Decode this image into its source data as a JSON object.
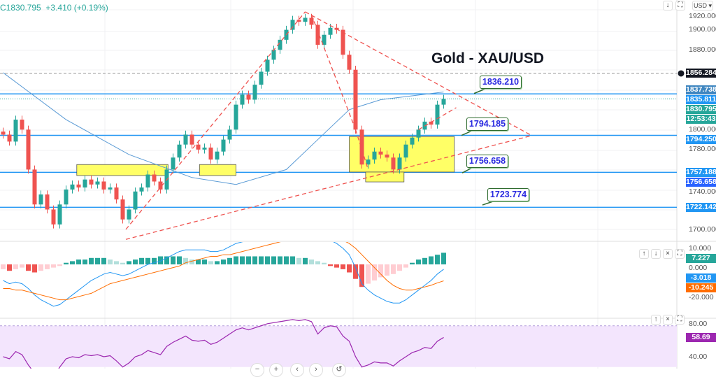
{
  "header": {
    "close": "C1830.795",
    "change": "+3.410 (+0.19%)"
  },
  "toolbar": {
    "currency": "USD",
    "scroll_icon": "arrow-down-icon",
    "autoscale_icon": "autoscale-icon"
  },
  "pane_buttons": {
    "up": "↑",
    "down": "↓",
    "close": "×",
    "max": "⛶"
  },
  "colors": {
    "up": "#26a69a",
    "down": "#ef5350",
    "hline": "#2196f3",
    "trend": "#ef5350",
    "ma": "#5b9bd5",
    "macd": "#2196f3",
    "signal": "#ff6d00",
    "rsi": "#9c27b0",
    "rsi_band": "#f3e5fd",
    "zone": "#ffff66"
  },
  "chart_data": {
    "type": "candlestick",
    "title": "Gold - XAU/USD",
    "price_axis": {
      "ticks": [
        "1920.000",
        "1900.000",
        "1880.000",
        "1800.000",
        "1780.000",
        "1740.000",
        "1700.000"
      ],
      "ylim": [
        1690,
        1925
      ]
    },
    "close": [
      1795,
      1788,
      1810,
      1800,
      1760,
      1725,
      1735,
      1720,
      1705,
      1725,
      1740,
      1745,
      1742,
      1750,
      1745,
      1748,
      1740,
      1742,
      1730,
      1710,
      1720,
      1738,
      1742,
      1755,
      1748,
      1740,
      1760,
      1772,
      1785,
      1795,
      1785,
      1780,
      1782,
      1770,
      1778,
      1790,
      1800,
      1825,
      1835,
      1830,
      1845,
      1858,
      1870,
      1880,
      1890,
      1900,
      1910,
      1908,
      1912,
      1905,
      1885,
      1895,
      1902,
      1900,
      1875,
      1860,
      1800,
      1765,
      1770,
      1778,
      1775,
      1772,
      1760,
      1772,
      1785,
      1792,
      1800,
      1808,
      1805,
      1825,
      1830.795
    ],
    "moving_average": [
      [
        0,
        1857
      ],
      [
        10,
        1810
      ],
      [
        20,
        1775
      ],
      [
        30,
        1752
      ],
      [
        37,
        1745
      ],
      [
        45,
        1760
      ],
      [
        50,
        1790
      ],
      [
        55,
        1820
      ],
      [
        60,
        1830
      ],
      [
        70,
        1837.738
      ]
    ],
    "horizontal_lines": [
      1835.811,
      1794.25,
      1757.188,
      1722.142
    ],
    "trend_lines": [
      [
        [
          19.5,
          1700
        ],
        [
          48,
          1918
        ]
      ],
      [
        [
          48,
          1918
        ],
        [
          84,
          1794
        ]
      ],
      [
        [
          49,
          1915
        ],
        [
          56,
          1800
        ]
      ],
      [
        [
          19.5,
          1690
        ],
        [
          84,
          1794
        ]
      ],
      [
        [
          56,
          1800
        ],
        [
          58,
          1760
        ]
      ],
      [
        [
          66,
          1800
        ],
        [
          72,
          1822
        ]
      ]
    ],
    "zones": [
      [
        [
          11.7,
          1765
        ],
        [
          26.2,
          1754
        ]
      ],
      [
        [
          31.2,
          1765
        ],
        [
          37,
          1754
        ]
      ],
      [
        [
          55,
          1793
        ],
        [
          71.7,
          1757.5
        ]
      ],
      [
        [
          57.6,
          1757.5
        ],
        [
          63.7,
          1747.6
        ]
      ]
    ],
    "callouts": [
      {
        "label": "1836.210",
        "price": 1836.21
      },
      {
        "label": "1794.185",
        "price": 1794.185
      },
      {
        "label": "1756.658",
        "price": 1756.658
      },
      {
        "label": "1723.774",
        "price": 1723.774
      }
    ],
    "price_tags": [
      {
        "value": "1856.284",
        "price": 1856.284,
        "color": "#131722"
      },
      {
        "value": "1837.738",
        "price": 1840,
        "color": "#3f86c0"
      },
      {
        "value": "1835.811",
        "price": 1834,
        "color": "#2196f3"
      },
      {
        "value": "1830.795",
        "price": 1828,
        "color": "#26a69a"
      },
      {
        "value": "12:53:43",
        "price": 1820,
        "color": "#26a69a"
      },
      {
        "value": "1794.250",
        "price": 1794.25,
        "color": "#2196f3"
      },
      {
        "value": "1757.188",
        "price": 1757.188,
        "color": "#2196f3"
      },
      {
        "value": "1756.658",
        "price": 1749,
        "color": "#2962ff"
      },
      {
        "value": "1722.142",
        "price": 1722.142,
        "color": "#2196f3"
      }
    ],
    "macd": {
      "ticks": [
        "10.000",
        "0.000",
        "-20.000"
      ],
      "histogram": [
        -3,
        -4,
        -3,
        -2,
        -4,
        -5,
        -4,
        -3,
        -2,
        -1,
        1,
        2,
        3,
        3,
        4,
        4,
        4,
        3,
        2,
        1,
        2,
        3,
        4,
        4,
        4,
        5,
        5,
        5,
        5,
        4,
        3,
        3,
        3,
        2,
        2,
        3,
        4,
        5,
        5,
        5,
        5,
        5,
        5,
        5,
        5,
        5,
        5,
        4,
        4,
        3,
        2,
        1,
        -1,
        -2,
        -3,
        -5,
        -9,
        -14,
        -12,
        -10,
        -8,
        -7,
        -6,
        -4,
        -2,
        1,
        3,
        4,
        5,
        6,
        7.227
      ],
      "macd": [
        -10,
        -12,
        -11,
        -12,
        -15,
        -19,
        -22,
        -24,
        -26,
        -25,
        -22,
        -19,
        -16,
        -13,
        -10,
        -8,
        -6,
        -5,
        -6,
        -7,
        -6,
        -4,
        -2,
        0,
        1,
        2,
        4,
        6,
        8,
        9,
        9,
        9,
        9,
        8,
        8,
        9,
        11,
        13,
        14,
        15,
        16,
        17,
        18,
        19,
        20,
        21,
        22,
        22,
        22,
        21,
        19,
        17,
        15,
        13,
        10,
        6,
        -2,
        -12,
        -16,
        -19,
        -21,
        -23,
        -24,
        -24,
        -22,
        -19,
        -16,
        -13,
        -10,
        -6,
        -3.018
      ],
      "signal": [
        -15,
        -15,
        -16,
        -16,
        -17,
        -18,
        -19,
        -20,
        -21,
        -22,
        -22,
        -21,
        -20,
        -19,
        -18,
        -16,
        -14,
        -12,
        -11,
        -10,
        -9,
        -8,
        -7,
        -6,
        -5,
        -4,
        -3,
        -2,
        -1,
        1,
        2,
        3,
        4,
        5,
        5,
        6,
        6,
        7,
        8,
        9,
        10,
        11,
        12,
        13,
        14,
        15,
        16,
        17,
        17,
        18,
        18,
        17,
        17,
        16,
        15,
        13,
        10,
        6,
        2,
        -2,
        -6,
        -10,
        -13,
        -15,
        -16,
        -16,
        -15,
        -14,
        -13,
        -11.5,
        -10.245
      ],
      "tags": [
        {
          "value": "7.227",
          "v": 7.227,
          "color": "#26a69a"
        },
        {
          "value": "-3.018",
          "v": -3.018,
          "color": "#2196f3"
        },
        {
          "value": "-10.245",
          "v": -10.245,
          "color": "#ff6d00"
        }
      ]
    },
    "rsi": {
      "ticks": [
        "80.00",
        "40.00"
      ],
      "values": [
        40,
        38,
        45,
        42,
        32,
        24,
        28,
        24,
        20,
        30,
        38,
        40,
        39,
        42,
        41,
        42,
        40,
        41,
        36,
        30,
        34,
        40,
        42,
        46,
        44,
        42,
        50,
        54,
        57,
        60,
        56,
        55,
        56,
        52,
        54,
        58,
        62,
        66,
        68,
        66,
        68,
        70,
        72,
        73,
        74,
        75,
        76,
        75,
        76,
        74,
        62,
        68,
        70,
        69,
        60,
        55,
        40,
        30,
        32,
        35,
        34,
        34,
        31,
        36,
        40,
        44,
        46,
        49,
        48,
        55,
        58.69
      ],
      "tag": {
        "value": "58.69",
        "v": 58.69
      }
    }
  },
  "nav": [
    "−",
    "+",
    "‹",
    "›",
    "↺"
  ]
}
